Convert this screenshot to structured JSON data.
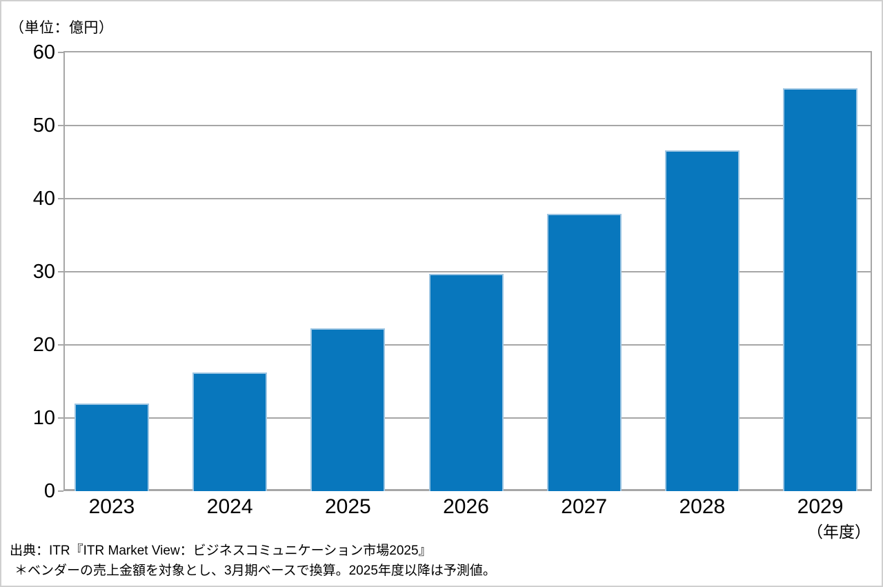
{
  "page": {
    "background": "#ffffff",
    "frame_border_color": "#cfcfcf"
  },
  "unit_label": "（単位：億円）",
  "x_axis_unit_label": "（年度）",
  "source": {
    "line1": "出典：ITR『ITR Market View：ビジネスコミュニケーション市場2025』",
    "line2": "＊ベンダーの売上金額を対象とし、3月期ベースで換算。2025年度以降は予測値。"
  },
  "chart_data": {
    "type": "bar",
    "categories": [
      "2023",
      "2024",
      "2025",
      "2026",
      "2027",
      "2028",
      "2029"
    ],
    "values": [
      12.0,
      16.2,
      22.3,
      29.7,
      37.9,
      46.6,
      55.1
    ],
    "title": "",
    "xlabel": "（年度）",
    "ylabel": "（単位：億円）",
    "unit": "億円",
    "ylim": [
      0,
      60
    ],
    "yticks": [
      0,
      10,
      20,
      30,
      40,
      50,
      60
    ],
    "grid": true,
    "legend": false,
    "bar_color": "#0877bd",
    "bar_edge_color": "#9ec6e3",
    "gridline_color": "#a6a6a6",
    "axis_color": "#a6a6a6",
    "text_color": "#000000"
  }
}
